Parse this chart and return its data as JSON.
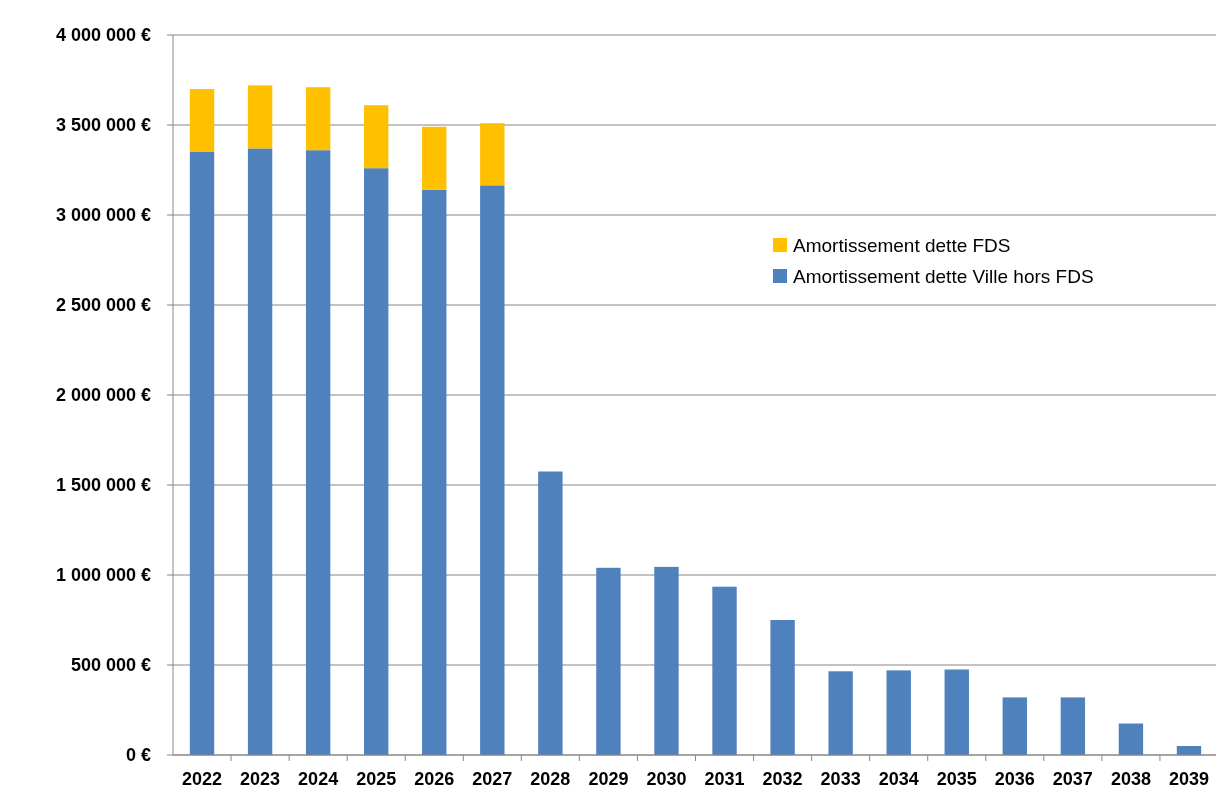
{
  "chart_data": {
    "type": "bar",
    "stacked": true,
    "categories": [
      "2022",
      "2023",
      "2024",
      "2025",
      "2026",
      "2027",
      "2028",
      "2029",
      "2030",
      "2031",
      "2032",
      "2033",
      "2034",
      "2035",
      "2036",
      "2037",
      "2038",
      "2039"
    ],
    "series": [
      {
        "name": "Amortissement dette Ville hors FDS",
        "color": "#4f81bd",
        "values": [
          3350000,
          3370000,
          3360000,
          3260000,
          3140000,
          3165000,
          1575000,
          1040000,
          1045000,
          935000,
          750000,
          465000,
          470000,
          475000,
          320000,
          320000,
          175000,
          50000
        ]
      },
      {
        "name": "Amortissement dette FDS",
        "color": "#ffc000",
        "values": [
          350000,
          350000,
          350000,
          350000,
          350000,
          345000,
          null,
          null,
          null,
          null,
          null,
          null,
          null,
          null,
          null,
          null,
          null,
          null
        ]
      }
    ],
    "ylim": [
      0,
      4000000
    ],
    "yticks": [
      {
        "value": 0,
        "label": "0 €"
      },
      {
        "value": 500000,
        "label": "500 000 €"
      },
      {
        "value": 1000000,
        "label": "1 000 000 €"
      },
      {
        "value": 1500000,
        "label": "1 500 000 €"
      },
      {
        "value": 2000000,
        "label": "2 000 000 €"
      },
      {
        "value": 2500000,
        "label": "2 500 000 €"
      },
      {
        "value": 3000000,
        "label": "3 000 000 €"
      },
      {
        "value": 3500000,
        "label": "3 500 000 €"
      },
      {
        "value": 4000000,
        "label": "4 000 000 €"
      }
    ],
    "grid": "y",
    "legend": "right"
  }
}
